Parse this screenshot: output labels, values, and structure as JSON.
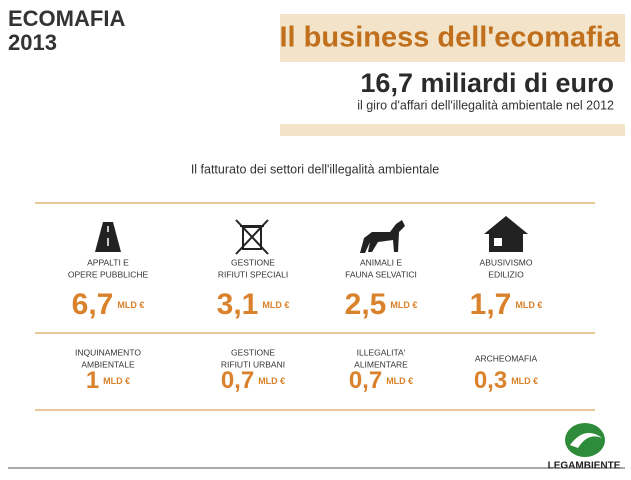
{
  "header": {
    "brand": [
      "ECOMAFIA",
      "2013"
    ],
    "title": "Il business dell'ecomafia",
    "total": "16,7 miliardi di euro",
    "subtitle": "il giro d'affari dell'illegalità ambientale nel 2012"
  },
  "section_title": "Il fatturato dei settori dell'illegalità ambientale",
  "items": [
    {
      "label": [
        "APPALTI E",
        "OPERE PUBBLICHE"
      ],
      "value": "6,7",
      "unit": "MLD €"
    },
    {
      "label": [
        "GESTIONE",
        "RIFIUTI SPECIALI"
      ],
      "value": "3,1",
      "unit": "MLD €"
    },
    {
      "label": [
        "ANIMALI E",
        "FAUNA SELVATICI"
      ],
      "value": "2,5",
      "unit": "MLD €"
    },
    {
      "label": [
        "ABUSIVISMO",
        "EDILIZIO"
      ],
      "value": "1,7",
      "unit": "MLD €"
    },
    {
      "label": [
        "INQUINAMENTO",
        "AMBIENTALE"
      ],
      "value": "1",
      "unit": "MLD €"
    },
    {
      "label": [
        "GESTIONE",
        "RIFIUTI URBANI"
      ],
      "value": "0,7",
      "unit": "MLD €"
    },
    {
      "label": [
        "ILLEGALITA'",
        "ALIMENTARE"
      ],
      "value": "0,7",
      "unit": "MLD €"
    },
    {
      "label": [
        "ARCHEOMAFIA"
      ],
      "value": "0,3",
      "unit": "MLD €"
    }
  ],
  "footer": {
    "logo": "LEGAMBIENTE"
  }
}
